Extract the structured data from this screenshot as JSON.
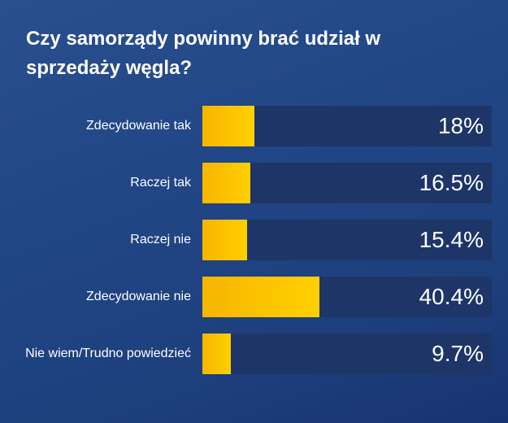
{
  "title": "Czy samorządy powinny brać udział w sprzedaży węgla?",
  "colors": {
    "bar_fill": "#ffc400",
    "track": "#1e3568",
    "background": "#214686",
    "text": "#ffffff"
  },
  "bars": [
    {
      "label": "Zdecydowanie tak",
      "display": "18%"
    },
    {
      "label": "Raczej tak",
      "display": "16.5%"
    },
    {
      "label": "Raczej nie",
      "display": "15.4%"
    },
    {
      "label": "Zdecydowanie nie",
      "display": "40.4%"
    },
    {
      "label": "Nie wiem/Trudno powiedzieć",
      "display": "9.7%"
    }
  ],
  "chart_data": {
    "type": "bar",
    "orientation": "horizontal",
    "title": "Czy samorządy powinny brać udział w sprzedaży węgla?",
    "categories": [
      "Zdecydowanie tak",
      "Raczej tak",
      "Raczej nie",
      "Zdecydowanie nie",
      "Nie wiem/Trudno powiedzieć"
    ],
    "values": [
      18,
      16.5,
      15.4,
      40.4,
      9.7
    ],
    "unit": "%",
    "xlim": [
      0,
      100
    ],
    "grid": false,
    "legend": "none"
  }
}
